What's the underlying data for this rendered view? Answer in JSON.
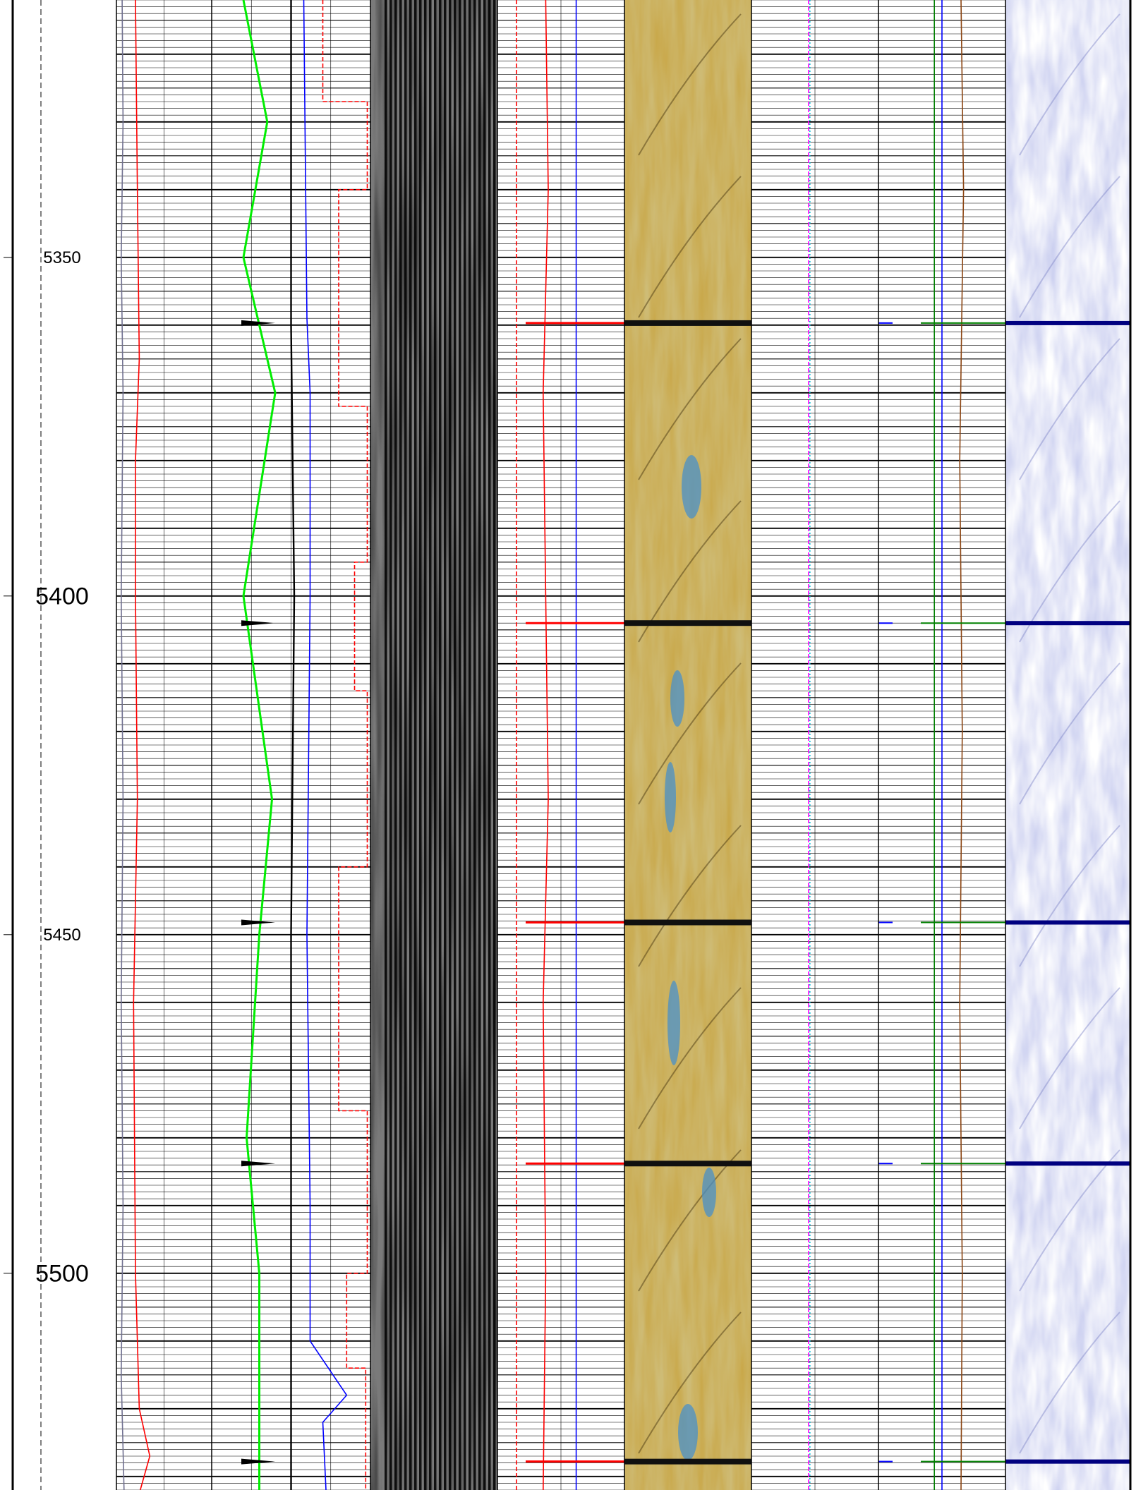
{
  "chart_data": {
    "type": "line",
    "title": "",
    "depth_axis": {
      "range": [
        5312,
        5532
      ],
      "major_tick_values": [
        5350,
        5400,
        5450,
        5500
      ],
      "tick_labels": [
        {
          "depth": 5350,
          "text": "5350",
          "size": "small"
        },
        {
          "depth": 5400,
          "text": "5400",
          "size": "large"
        },
        {
          "depth": 5450,
          "text": "5450",
          "size": "small"
        },
        {
          "depth": 5500,
          "text": "5500",
          "size": "large"
        }
      ],
      "grid_major_every": 5,
      "grid_minor_every": 1
    },
    "event_depths": [
      5359.7,
      5404,
      5448.2,
      5483.8,
      5527.8
    ],
    "tracks": [
      {
        "id": "track-1",
        "series": [
          {
            "name": "",
            "color": "#707090",
            "style": "solid",
            "values": [
              [
                5312,
                0.06
              ],
              [
                5330,
                0.07
              ],
              [
                5350,
                0.05
              ],
              [
                5370,
                0.07
              ],
              [
                5400,
                0.05
              ],
              [
                5430,
                0.07
              ],
              [
                5460,
                0.05
              ],
              [
                5490,
                0.07
              ],
              [
                5515,
                0.05
              ],
              [
                5532,
                0.08
              ]
            ]
          },
          {
            "name": "",
            "color": "#ff0000",
            "style": "solid",
            "values": [
              [
                5312,
                0.2
              ],
              [
                5340,
                0.22
              ],
              [
                5365,
                0.24
              ],
              [
                5380,
                0.2
              ],
              [
                5400,
                0.2
              ],
              [
                5430,
                0.22
              ],
              [
                5460,
                0.18
              ],
              [
                5500,
                0.2
              ],
              [
                5520,
                0.24
              ],
              [
                5527,
                0.35
              ],
              [
                5532,
                0.25
              ]
            ]
          }
        ]
      },
      {
        "id": "track-2",
        "series": [
          {
            "name": "",
            "color": "#00ee00",
            "style": "solid",
            "values": [
              [
                5312,
                0.2
              ],
              [
                5330,
                0.35
              ],
              [
                5350,
                0.2
              ],
              [
                5370,
                0.4
              ],
              [
                5400,
                0.2
              ],
              [
                5430,
                0.38
              ],
              [
                5450,
                0.3
              ],
              [
                5480,
                0.22
              ],
              [
                5500,
                0.3
              ],
              [
                5532,
                0.3
              ]
            ]
          },
          {
            "name": "",
            "color": "#000000",
            "style": "solid",
            "values": [
              [
                5312,
                0.5
              ],
              [
                5360,
                0.5
              ],
              [
                5400,
                0.52
              ],
              [
                5450,
                0.5
              ],
              [
                5500,
                0.5
              ],
              [
                5532,
                0.5
              ]
            ]
          },
          {
            "name": "",
            "color": "#0000ff",
            "style": "solid",
            "values": [
              [
                5312,
                0.58
              ],
              [
                5359,
                0.6
              ],
              [
                5370,
                0.62
              ],
              [
                5400,
                0.62
              ],
              [
                5450,
                0.6
              ],
              [
                5490,
                0.62
              ],
              [
                5510,
                0.62
              ],
              [
                5518,
                0.85
              ],
              [
                5522,
                0.7
              ],
              [
                5532,
                0.72
              ]
            ]
          },
          {
            "name": "",
            "color": "#ff0000",
            "style": "dashed",
            "values": [
              [
                5312,
                0.7
              ],
              [
                5327,
                0.7
              ],
              [
                5327,
                0.98
              ],
              [
                5340,
                0.98
              ],
              [
                5340,
                0.8
              ],
              [
                5372,
                0.8
              ],
              [
                5372,
                0.98
              ],
              [
                5395,
                0.98
              ],
              [
                5395,
                0.9
              ],
              [
                5414,
                0.9
              ],
              [
                5414,
                0.98
              ],
              [
                5440,
                0.98
              ],
              [
                5440,
                0.8
              ],
              [
                5476,
                0.8
              ],
              [
                5476,
                0.98
              ],
              [
                5500,
                0.98
              ],
              [
                5500,
                0.85
              ],
              [
                5514,
                0.85
              ],
              [
                5514,
                0.97
              ],
              [
                5532,
                0.97
              ]
            ]
          }
        ]
      },
      {
        "id": "track-4",
        "series": [
          {
            "name": "",
            "color": "#ff0000",
            "style": "dashed",
            "values": [
              [
                5312,
                0.15
              ],
              [
                5532,
                0.15
              ]
            ]
          },
          {
            "name": "",
            "color": "#ff0000",
            "style": "solid",
            "values": [
              [
                5312,
                0.38
              ],
              [
                5340,
                0.4
              ],
              [
                5370,
                0.36
              ],
              [
                5400,
                0.38
              ],
              [
                5430,
                0.4
              ],
              [
                5460,
                0.36
              ],
              [
                5500,
                0.38
              ],
              [
                5532,
                0.36
              ]
            ]
          },
          {
            "name": "",
            "color": "#0000ff",
            "style": "solid",
            "values": [
              [
                5312,
                0.62
              ],
              [
                5532,
                0.62
              ]
            ]
          }
        ]
      },
      {
        "id": "track-6",
        "series": [
          {
            "name": "",
            "color": "#ff00ff",
            "style": "dashed",
            "values": [
              [
                5312,
                0.45
              ],
              [
                5532,
                0.45
              ]
            ]
          },
          {
            "name": "",
            "color": "#00bcd4",
            "style": "dotted",
            "values": [
              [
                5312,
                0.46
              ],
              [
                5532,
                0.46
              ]
            ]
          }
        ]
      },
      {
        "id": "track-7",
        "series": [
          {
            "name": "",
            "color": "#008000",
            "style": "solid",
            "values": [
              [
                5312,
                0.44
              ],
              [
                5532,
                0.44
              ]
            ]
          },
          {
            "name": "",
            "color": "#0000ff",
            "style": "solid",
            "values": [
              [
                5312,
                0.5
              ],
              [
                5532,
                0.5
              ]
            ]
          },
          {
            "name": "",
            "color": "#8b4513",
            "style": "solid",
            "values": [
              [
                5312,
                0.65
              ],
              [
                5340,
                0.67
              ],
              [
                5380,
                0.64
              ],
              [
                5420,
                0.66
              ],
              [
                5460,
                0.64
              ],
              [
                5500,
                0.66
              ],
              [
                5532,
                0.65
              ]
            ]
          }
        ]
      }
    ],
    "image_tracks": [
      {
        "id": "track-3",
        "kind": "waveform",
        "colors": [
          "#000000",
          "#ffffff",
          "#7a7a7a"
        ]
      },
      {
        "id": "track-5",
        "kind": "borehole-image",
        "colors": [
          "#5a4410",
          "#c9a84a",
          "#4a90c8"
        ]
      },
      {
        "id": "track-8",
        "kind": "borehole-image",
        "colors": [
          "#c8cce8",
          "#ffffff",
          "#000080"
        ]
      }
    ]
  }
}
